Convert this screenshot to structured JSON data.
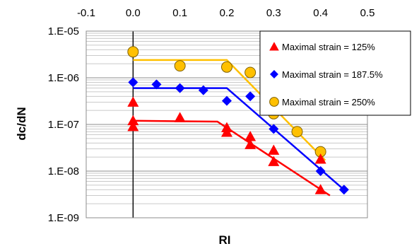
{
  "chart_data": {
    "type": "scatter",
    "xlabel": "RI",
    "ylabel": "dc/dN",
    "xlim": [
      -0.1,
      0.5
    ],
    "ylim": [
      1e-09,
      1e-05
    ],
    "y_scale": "log",
    "x_axis_position": "top",
    "grid": true,
    "legend_position": "top-right",
    "x_tick_labels": [
      "-0.1",
      "0.0",
      "0.1",
      "0.2",
      "0.3",
      "0.4",
      "0.5"
    ],
    "x_tick_values": [
      -0.1,
      0.0,
      0.1,
      0.2,
      0.3,
      0.4,
      0.5
    ],
    "y_tick_labels": [
      "1.E-09",
      "1.E-08",
      "1.E-07",
      "1.E-06",
      "1.E-05"
    ],
    "y_tick_values": [
      1e-09,
      1e-08,
      1e-07,
      1e-06,
      1e-05
    ],
    "series": [
      {
        "name": "Maximal strain = 125%",
        "marker": "triangle",
        "color": "#ff0000",
        "points": [
          [
            0.0,
            3e-07
          ],
          [
            0.0,
            1.2e-07
          ],
          [
            0.0,
            9e-08
          ],
          [
            0.1,
            1.4e-07
          ],
          [
            0.2,
            8.5e-08
          ],
          [
            0.2,
            6.8e-08
          ],
          [
            0.25,
            5.5e-08
          ],
          [
            0.25,
            3.7e-08
          ],
          [
            0.3,
            2.8e-08
          ],
          [
            0.3,
            1.6e-08
          ],
          [
            0.4,
            1.8e-08
          ],
          [
            0.4,
            4e-09
          ]
        ],
        "trend": [
          [
            0.0,
            1.2e-07
          ],
          [
            0.18,
            1.15e-07
          ],
          [
            0.42,
            3e-09
          ]
        ]
      },
      {
        "name": "Maximal strain = 187.5%",
        "marker": "diamond",
        "color": "#0000ff",
        "points": [
          [
            0.0,
            8e-07
          ],
          [
            0.05,
            7.2e-07
          ],
          [
            0.1,
            6e-07
          ],
          [
            0.15,
            5.4e-07
          ],
          [
            0.2,
            3.2e-07
          ],
          [
            0.25,
            4e-07
          ],
          [
            0.3,
            8e-08
          ],
          [
            0.4,
            1e-08
          ],
          [
            0.45,
            4e-09
          ]
        ],
        "trend": [
          [
            0.0,
            6e-07
          ],
          [
            0.2,
            6e-07
          ],
          [
            0.45,
            4e-09
          ]
        ]
      },
      {
        "name": "Maximal strain = 250%",
        "marker": "circle",
        "color": "#ffc000",
        "points": [
          [
            0.0,
            3.6e-06
          ],
          [
            0.1,
            1.8e-06
          ],
          [
            0.2,
            1.7e-06
          ],
          [
            0.25,
            1.3e-06
          ],
          [
            0.3,
            1.7e-07
          ],
          [
            0.35,
            7e-08
          ],
          [
            0.4,
            2.6e-08
          ]
        ],
        "trend": [
          [
            0.0,
            2.4e-06
          ],
          [
            0.2,
            2.4e-06
          ],
          [
            0.41,
            1.7e-08
          ]
        ]
      }
    ]
  }
}
